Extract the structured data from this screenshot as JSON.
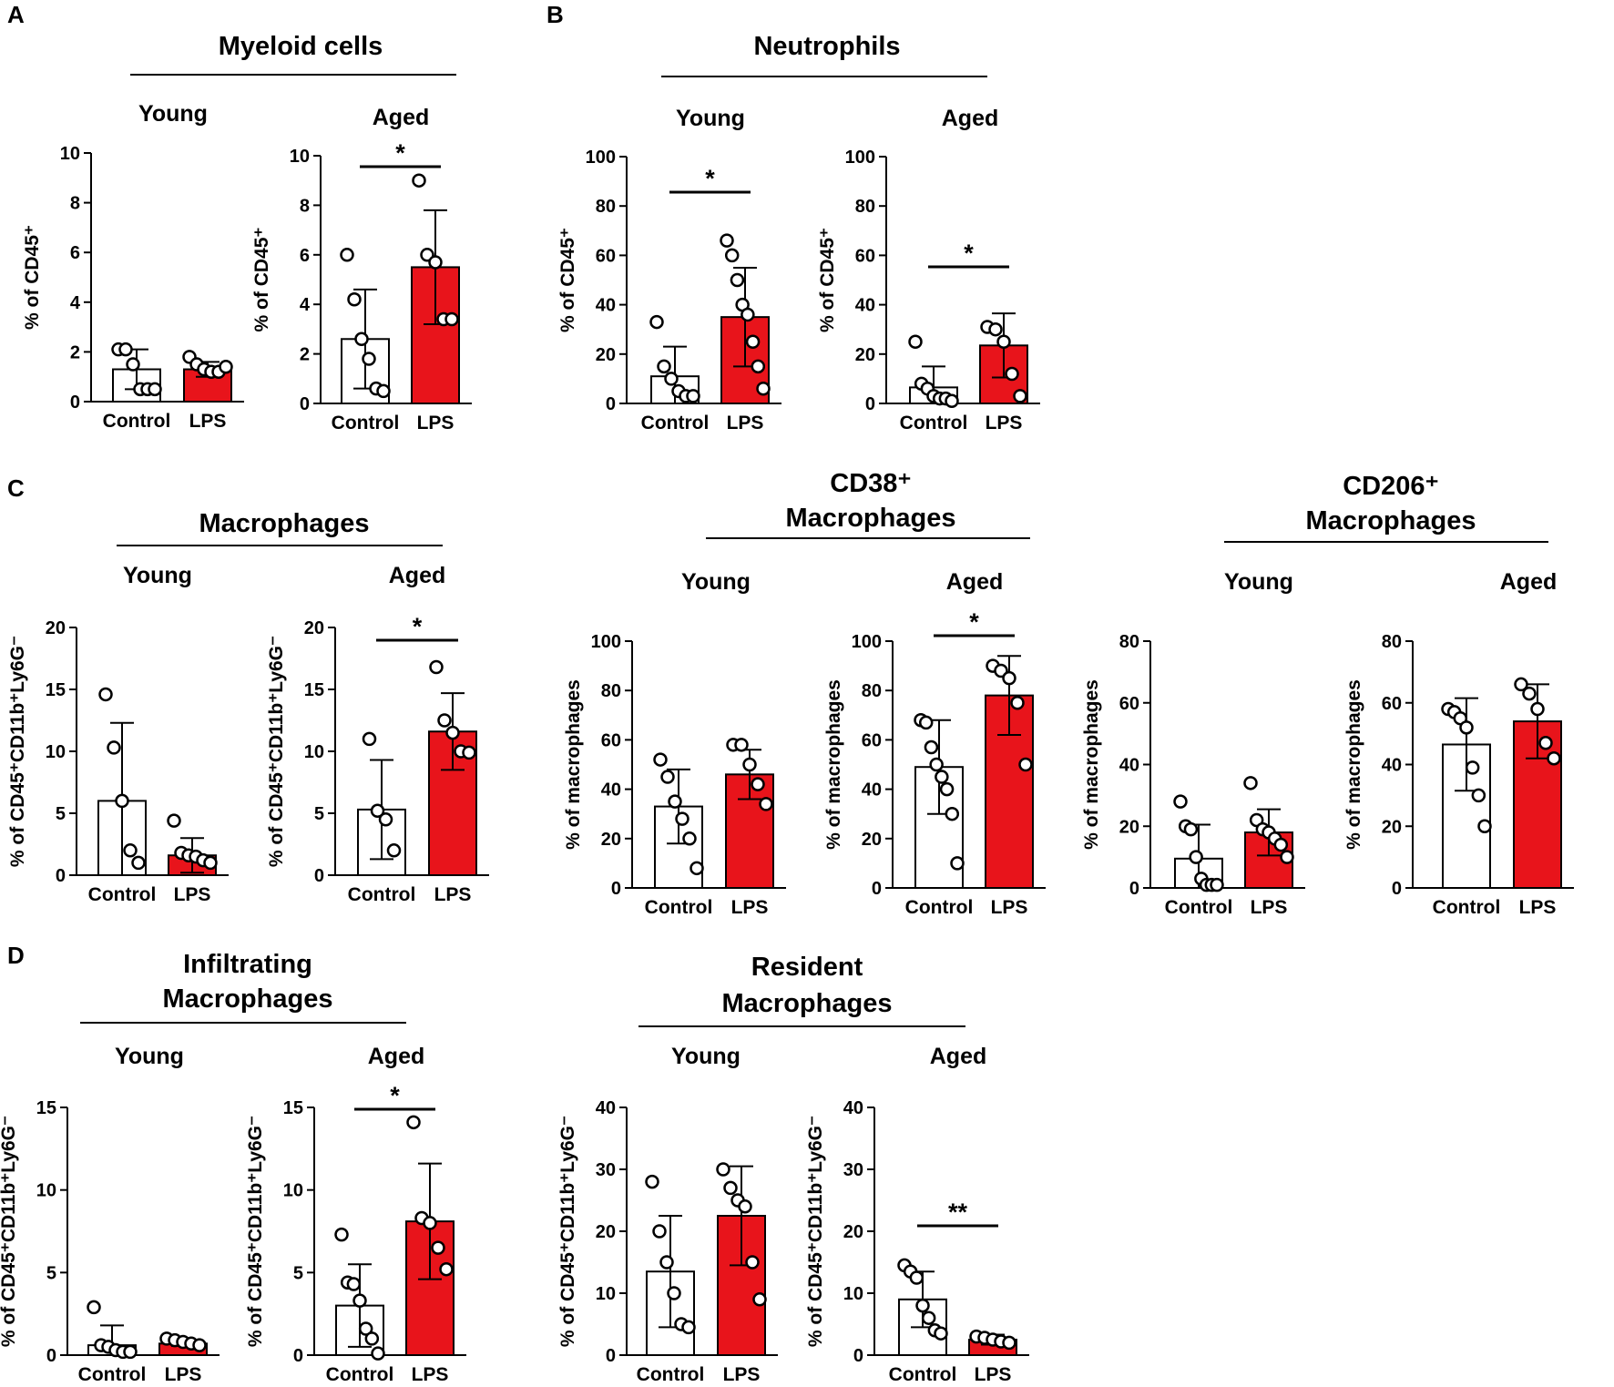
{
  "figure": {
    "colors": {
      "control": "#ffffff",
      "lps": "#e8141b",
      "axis": "#000000",
      "dot_fill": "#ffffff"
    },
    "panels": [
      {
        "letter": "A",
        "title": [
          "Myeloid cells"
        ]
      },
      {
        "letter": "B",
        "title": [
          "Neutrophils"
        ]
      },
      {
        "letter": "C",
        "title": [
          "Macrophages"
        ]
      },
      {
        "letter": "",
        "title": [
          "CD38⁺",
          "Macrophages"
        ]
      },
      {
        "letter": "",
        "title": [
          "CD206⁺",
          "Macrophages"
        ]
      },
      {
        "letter": "D",
        "title": [
          "Infiltrating",
          "Macrophages"
        ]
      },
      {
        "letter": "",
        "title": [
          "Resident",
          "Macrophages"
        ]
      }
    ]
  },
  "chart_data": [
    {
      "panel": "A",
      "group": "Young",
      "type": "bar",
      "title": "Young",
      "ylabel": "% of CD45⁺",
      "ylim": [
        0,
        10
      ],
      "yticks": [
        "0",
        "2",
        "4",
        "6",
        "8",
        "10"
      ],
      "categories": [
        "Control",
        "LPS"
      ],
      "series": [
        {
          "name": "Control",
          "mean": 1.3,
          "sd": 0.8,
          "points": [
            2.1,
            2.1,
            1.5,
            0.5,
            0.5,
            0.5
          ]
        },
        {
          "name": "LPS",
          "mean": 1.3,
          "sd": 0.3,
          "points": [
            1.8,
            1.5,
            1.3,
            1.2,
            1.2,
            1.4
          ]
        }
      ],
      "significance": ""
    },
    {
      "panel": "A",
      "group": "Aged",
      "type": "bar",
      "title": "Aged",
      "ylabel": "% of CD45⁺",
      "ylim": [
        0,
        10
      ],
      "yticks": [
        "0",
        "2",
        "4",
        "6",
        "8",
        "10"
      ],
      "categories": [
        "Control",
        "LPS"
      ],
      "series": [
        {
          "name": "Control",
          "mean": 2.6,
          "sd": 2.0,
          "points": [
            6.0,
            4.2,
            2.6,
            1.8,
            0.6,
            0.5
          ]
        },
        {
          "name": "LPS",
          "mean": 5.5,
          "sd": 2.3,
          "points": [
            9.0,
            6.0,
            5.7,
            3.4,
            3.4
          ]
        }
      ],
      "significance": "*"
    },
    {
      "panel": "B",
      "group": "Young",
      "type": "bar",
      "title": "Young",
      "ylabel": "% of CD45⁺",
      "ylim": [
        0,
        100
      ],
      "yticks": [
        "0",
        "20",
        "40",
        "60",
        "80",
        "100"
      ],
      "categories": [
        "Control",
        "LPS"
      ],
      "series": [
        {
          "name": "Control",
          "mean": 11,
          "sd": 12,
          "points": [
            33,
            15,
            10,
            5,
            3,
            3
          ]
        },
        {
          "name": "LPS",
          "mean": 35,
          "sd": 20,
          "points": [
            66,
            60,
            50,
            40,
            36,
            25,
            15,
            6
          ]
        }
      ],
      "significance": "*"
    },
    {
      "panel": "B",
      "group": "Aged",
      "type": "bar",
      "title": "Aged",
      "ylabel": "% of CD45⁺",
      "ylim": [
        0,
        100
      ],
      "yticks": [
        "0",
        "20",
        "40",
        "60",
        "80",
        "100"
      ],
      "categories": [
        "Control",
        "LPS"
      ],
      "series": [
        {
          "name": "Control",
          "mean": 6.5,
          "sd": 8.5,
          "points": [
            25,
            8,
            6,
            3,
            2,
            2,
            1
          ]
        },
        {
          "name": "LPS",
          "mean": 23.5,
          "sd": 13,
          "points": [
            31,
            30,
            25,
            12,
            3
          ]
        }
      ],
      "significance": "*"
    },
    {
      "panel": "C",
      "group": "Young",
      "type": "bar",
      "title": "Young",
      "ylabel": "% of CD45⁺CD11b⁺Ly6G⁻",
      "ylim": [
        0,
        20
      ],
      "yticks": [
        "0",
        "5",
        "10",
        "15",
        "20"
      ],
      "categories": [
        "Control",
        "LPS"
      ],
      "series": [
        {
          "name": "Control",
          "mean": 6.0,
          "sd": 6.3,
          "points": [
            14.6,
            10.3,
            6.0,
            2.0,
            1.0
          ]
        },
        {
          "name": "LPS",
          "mean": 1.6,
          "sd": 1.4,
          "points": [
            4.4,
            1.8,
            1.6,
            1.5,
            1.2,
            1.0
          ]
        }
      ],
      "significance": ""
    },
    {
      "panel": "C",
      "group": "Aged",
      "type": "bar",
      "title": "Aged",
      "ylabel": "% of CD45⁺CD11b⁺Ly6G⁻",
      "ylim": [
        0,
        20
      ],
      "yticks": [
        "0",
        "5",
        "10",
        "15",
        "20"
      ],
      "categories": [
        "Control",
        "LPS"
      ],
      "series": [
        {
          "name": "Control",
          "mean": 5.3,
          "sd": 4.0,
          "points": [
            11.0,
            5.2,
            4.5,
            2.0
          ]
        },
        {
          "name": "LPS",
          "mean": 11.6,
          "sd": 3.1,
          "points": [
            16.8,
            12.5,
            11.5,
            10.0,
            9.9
          ]
        }
      ],
      "significance": "*"
    },
    {
      "panel": "C-CD38",
      "group": "Young",
      "type": "bar",
      "title": "Young",
      "ylabel": "% of macrophages",
      "ylim": [
        0,
        100
      ],
      "yticks": [
        "0",
        "20",
        "40",
        "60",
        "80",
        "100"
      ],
      "categories": [
        "Control",
        "LPS"
      ],
      "series": [
        {
          "name": "Control",
          "mean": 33,
          "sd": 15,
          "points": [
            52,
            45,
            35,
            28,
            20,
            8
          ]
        },
        {
          "name": "LPS",
          "mean": 46,
          "sd": 10,
          "points": [
            58,
            58,
            50,
            42,
            34
          ]
        }
      ],
      "significance": ""
    },
    {
      "panel": "C-CD38",
      "group": "Aged",
      "type": "bar",
      "title": "Aged",
      "ylabel": "% of macrophages",
      "ylim": [
        0,
        100
      ],
      "yticks": [
        "0",
        "20",
        "40",
        "60",
        "80",
        "100"
      ],
      "categories": [
        "Control",
        "LPS"
      ],
      "series": [
        {
          "name": "Control",
          "mean": 49,
          "sd": 19,
          "points": [
            68,
            67,
            57,
            50,
            45,
            40,
            30,
            10
          ]
        },
        {
          "name": "LPS",
          "mean": 78,
          "sd": 16,
          "points": [
            90,
            88,
            85,
            75,
            50
          ]
        }
      ],
      "significance": "*"
    },
    {
      "panel": "C-CD206",
      "group": "Young",
      "type": "bar",
      "title": "Young",
      "ylabel": "% of macrophages",
      "ylim": [
        0,
        80
      ],
      "yticks": [
        "0",
        "20",
        "40",
        "60",
        "80"
      ],
      "categories": [
        "Control",
        "LPS"
      ],
      "series": [
        {
          "name": "Control",
          "mean": 9.5,
          "sd": 11,
          "points": [
            28,
            20,
            19,
            10,
            3,
            1,
            1,
            1
          ]
        },
        {
          "name": "LPS",
          "mean": 18,
          "sd": 7.5,
          "points": [
            34,
            22,
            19,
            18,
            16,
            14,
            10
          ]
        }
      ],
      "significance": ""
    },
    {
      "panel": "C-CD206",
      "group": "Aged",
      "type": "bar",
      "title": "Aged",
      "ylabel": "% of macrophages",
      "ylim": [
        0,
        80
      ],
      "yticks": [
        "0",
        "20",
        "40",
        "60",
        "80"
      ],
      "categories": [
        "Control",
        "LPS"
      ],
      "series": [
        {
          "name": "Control",
          "mean": 46.5,
          "sd": 15,
          "points": [
            58,
            57,
            55,
            52,
            39,
            30,
            20
          ]
        },
        {
          "name": "LPS",
          "mean": 54,
          "sd": 12,
          "points": [
            66,
            63,
            58,
            47,
            42
          ]
        }
      ],
      "significance": ""
    },
    {
      "panel": "D",
      "group": "Young",
      "type": "bar",
      "title": "Young",
      "ylabel": "% of CD45⁺CD11b⁺Ly6G⁻",
      "ylim": [
        0,
        15
      ],
      "yticks": [
        "0",
        "5",
        "10",
        "15"
      ],
      "categories": [
        "Control",
        "LPS"
      ],
      "series": [
        {
          "name": "Control",
          "mean": 0.6,
          "sd": 1.2,
          "points": [
            2.9,
            0.6,
            0.5,
            0.3,
            0.2,
            0.2
          ]
        },
        {
          "name": "LPS",
          "mean": 0.7,
          "sd": 0.15,
          "points": [
            1.0,
            0.9,
            0.8,
            0.7,
            0.6
          ]
        }
      ],
      "significance": ""
    },
    {
      "panel": "D",
      "group": "Aged",
      "type": "bar",
      "title": "Aged",
      "ylabel": "% of CD45⁺CD11b⁺Ly6G⁻",
      "ylim": [
        0,
        15
      ],
      "yticks": [
        "0",
        "5",
        "10",
        "15"
      ],
      "categories": [
        "Control",
        "LPS"
      ],
      "series": [
        {
          "name": "Control",
          "mean": 3.0,
          "sd": 2.5,
          "points": [
            7.3,
            4.4,
            4.3,
            3.3,
            1.6,
            1.0,
            0.1
          ]
        },
        {
          "name": "LPS",
          "mean": 8.1,
          "sd": 3.5,
          "points": [
            14.1,
            8.3,
            8.0,
            6.5,
            5.2
          ]
        }
      ],
      "significance": "*"
    },
    {
      "panel": "D-Resident",
      "group": "Young",
      "type": "bar",
      "title": "Young",
      "ylabel": "% of CD45⁺CD11b⁺Ly6G⁻",
      "ylim": [
        0,
        40
      ],
      "yticks": [
        "0",
        "10",
        "20",
        "30",
        "40"
      ],
      "categories": [
        "Control",
        "LPS"
      ],
      "series": [
        {
          "name": "Control",
          "mean": 13.5,
          "sd": 9,
          "points": [
            28,
            20,
            15,
            10,
            5,
            4.5
          ]
        },
        {
          "name": "LPS",
          "mean": 22.5,
          "sd": 8,
          "points": [
            30,
            27,
            25,
            24,
            15,
            9
          ]
        }
      ],
      "significance": ""
    },
    {
      "panel": "D-Resident",
      "group": "Aged",
      "type": "bar",
      "title": "Aged",
      "ylabel": "% of CD45⁺CD11b⁺Ly6G⁻",
      "ylim": [
        0,
        40
      ],
      "yticks": [
        "0",
        "10",
        "20",
        "30",
        "40"
      ],
      "categories": [
        "Control",
        "LPS"
      ],
      "series": [
        {
          "name": "Control",
          "mean": 9.0,
          "sd": 4.5,
          "points": [
            14.5,
            13.5,
            12.5,
            8.0,
            6.0,
            4.0,
            3.5
          ]
        },
        {
          "name": "LPS",
          "mean": 2.5,
          "sd": 0.8,
          "points": [
            3.0,
            2.8,
            2.5,
            2.2,
            2.0
          ]
        }
      ],
      "significance": "**"
    }
  ]
}
